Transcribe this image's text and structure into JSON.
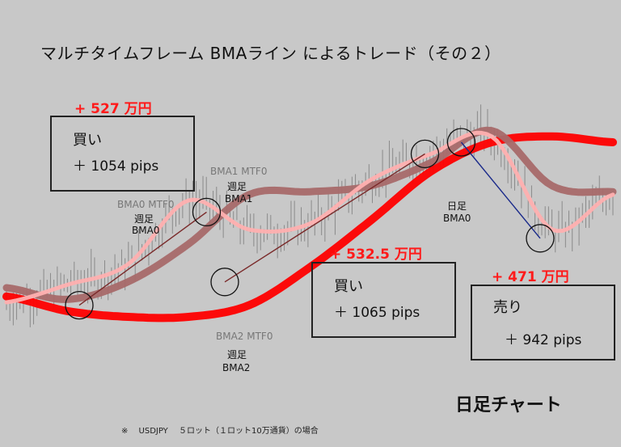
{
  "title": "マルチタイムフレーム BMAライン によるトレード（その２）",
  "chart_name": "日足チャート",
  "footnote": "※　 USDJPY　 ５ロット（１ロット10万通貨）の場合",
  "trades": [
    {
      "profit": "+ 527 万円",
      "side": "買い",
      "pips": "＋ 1054 pips"
    },
    {
      "profit": "+ 532.5 万円",
      "side": "買い",
      "pips": "＋ 1065 pips"
    },
    {
      "profit": "+ 471 万円",
      "side": "売り",
      "pips": "＋ 942 pips"
    }
  ],
  "labels": {
    "bma0_mtf0": "BMA0 MTF0",
    "bma0_weekly": "週足",
    "bma0_weekly_name": "BMA0",
    "bma1_mtf0": "BMA1 MTF0",
    "bma1_weekly": "週足",
    "bma1_weekly_name": "BMA1",
    "bma2_mtf0": "BMA2 MTF0",
    "bma2_weekly": "週足",
    "bma2_weekly_name": "BMA2",
    "daily": "日足",
    "daily_name": "BMA0"
  },
  "chart_data": {
    "type": "line",
    "title": "マルチタイムフレーム BMAライン によるトレード（その２）",
    "x": [
      0,
      10,
      20,
      30,
      40,
      50,
      60,
      70,
      80,
      90,
      100
    ],
    "series": [
      {
        "name": "BMA2 MTF0",
        "color": "#ff0000",
        "values": [
          37,
          32,
          30,
          30,
          34,
          47,
          63,
          80,
          90,
          92,
          90
        ]
      },
      {
        "name": "BMA1 MTF0",
        "color": "#a86a6a",
        "values": [
          40,
          36,
          42,
          55,
          72,
          73,
          75,
          83,
          94,
          75,
          73
        ]
      },
      {
        "name": "BMA0 MTF0",
        "color": "#ffb0b0",
        "values": [
          35,
          41,
          48,
          70,
          60,
          62,
          77,
          86,
          92,
          60,
          72
        ]
      }
    ],
    "ylim": [
      0,
      100
    ],
    "grid": false
  }
}
